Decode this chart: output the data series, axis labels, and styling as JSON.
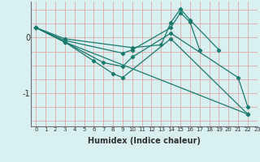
{
  "xlabel": "Humidex (Indice chaleur)",
  "bg_color": "#d8f0f0",
  "line_color": "#1a7a6e",
  "red_line_color": "#e0a8a8",
  "xlim": [
    -0.5,
    23
  ],
  "ylim": [
    -1.6,
    0.65
  ],
  "yticks": [
    0,
    -1
  ],
  "lines": [
    {
      "x": [
        0,
        3,
        10,
        13,
        14,
        15,
        16,
        19
      ],
      "y": [
        0.18,
        -0.02,
        -0.18,
        -0.13,
        0.27,
        0.52,
        0.32,
        -0.22
      ]
    },
    {
      "x": [
        0,
        3,
        9,
        10,
        14,
        15,
        16,
        17
      ],
      "y": [
        0.18,
        -0.05,
        -0.28,
        -0.22,
        0.18,
        0.45,
        0.28,
        -0.22
      ]
    },
    {
      "x": [
        0,
        3,
        7,
        9,
        10,
        14,
        21,
        22
      ],
      "y": [
        0.18,
        -0.08,
        -0.45,
        -0.52,
        -0.35,
        0.08,
        -0.72,
        -1.25
      ]
    },
    {
      "x": [
        0,
        3,
        6,
        8,
        9,
        14,
        22
      ],
      "y": [
        0.18,
        -0.08,
        -0.42,
        -0.65,
        -0.72,
        -0.02,
        -1.38
      ]
    },
    {
      "x": [
        0,
        3,
        22
      ],
      "y": [
        0.18,
        -0.08,
        -1.38
      ]
    }
  ]
}
